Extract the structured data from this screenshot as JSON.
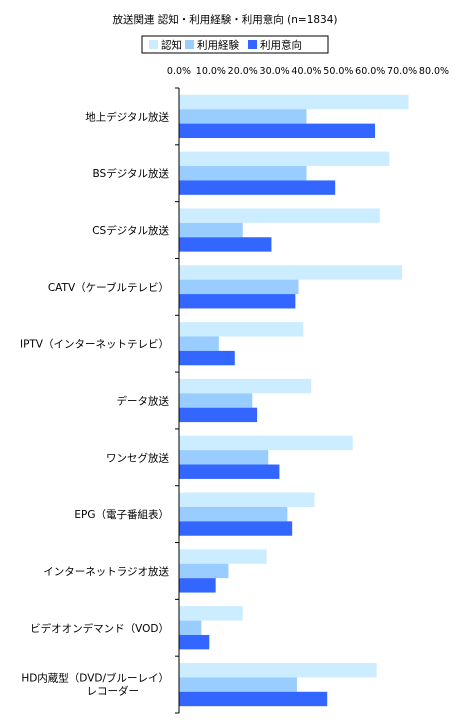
{
  "chart_data": {
    "type": "bar",
    "orientation": "horizontal",
    "title": "放送関連  認知・利用経験・利用意向 (n=1834)",
    "categories": [
      "地上デジタル放送",
      "BSデジタル放送",
      "CSデジタル放送",
      "CATV（ケーブルテレビ）",
      "IPTV（インターネットテレビ）",
      "データ放送",
      "ワンセグ放送",
      "EPG（電子番組表）",
      "インターネットラジオ放送",
      "ビデオオンデマンド（VOD）",
      "HD内蔵型（DVD/ブルーレイ）レコーダー"
    ],
    "series": [
      {
        "name": "認知",
        "color": "#CCECFF",
        "values": [
          72.0,
          66.0,
          63.0,
          70.0,
          39.0,
          41.5,
          54.5,
          42.5,
          27.5,
          20.0,
          62.0
        ]
      },
      {
        "name": "利用経験",
        "color": "#99CCFF",
        "values": [
          40.0,
          40.0,
          20.0,
          37.5,
          12.5,
          23.0,
          28.0,
          34.0,
          15.5,
          7.0,
          37.0
        ]
      },
      {
        "name": "利用意向",
        "color": "#3366FF",
        "values": [
          61.5,
          49.0,
          29.0,
          36.5,
          17.5,
          24.5,
          31.5,
          35.5,
          11.5,
          9.5,
          46.5
        ]
      }
    ],
    "xlim": [
      0,
      80
    ],
    "xticks": [
      "0.0%",
      "10.0%",
      "20.0%",
      "30.0%",
      "40.0%",
      "50.0%",
      "60.0%",
      "70.0%",
      "80.0%"
    ],
    "grid": false,
    "legend_position": "top"
  }
}
